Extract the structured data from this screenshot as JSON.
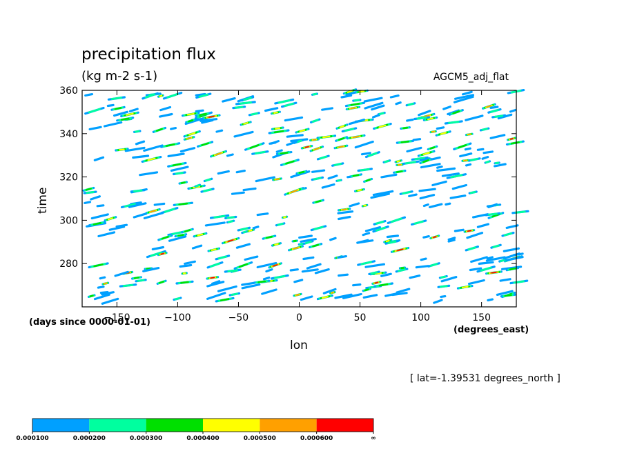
{
  "header": {
    "title": "precipitation flux",
    "units": "(kg m-2 s-1)",
    "model": "AGCM5_adj_flat"
  },
  "axes": {
    "xlabel": "lon",
    "ylabel": "time",
    "time_units": "(days since 0000-01-01)",
    "lon_units": "(degrees_east)"
  },
  "footer": {
    "slice": "[ lat=-1.39531 degrees_north ]"
  },
  "colorbar": {
    "colors": [
      "#00a0ff",
      "#00ff9f",
      "#00e000",
      "#ffff00",
      "#ffa000",
      "#ff0000"
    ],
    "labels": [
      "0.000100",
      "0.000200",
      "0.000300",
      "0.000400",
      "0.000500",
      "0.000600",
      "∞"
    ]
  },
  "chart_data": {
    "type": "heatmap",
    "title": "precipitation flux",
    "subtitle": "(kg m-2 s-1)",
    "xlabel": "lon",
    "ylabel": "time",
    "xlim": [
      -178.59375,
      178.59375
    ],
    "ylim": [
      260,
      360
    ],
    "xticks": [
      -150,
      -100,
      -50,
      0,
      50,
      100,
      150
    ],
    "yticks": [
      280,
      300,
      320,
      340,
      360
    ],
    "xtick_labels": [
      "−150",
      "−100",
      "−50",
      "0",
      "50",
      "100",
      "150"
    ],
    "ytick_labels": [
      "280",
      "300",
      "320",
      "340",
      "360"
    ],
    "levels": [
      0.0001,
      0.0002,
      0.0003,
      0.0004,
      0.0005,
      0.0006
    ],
    "grid": false
  }
}
